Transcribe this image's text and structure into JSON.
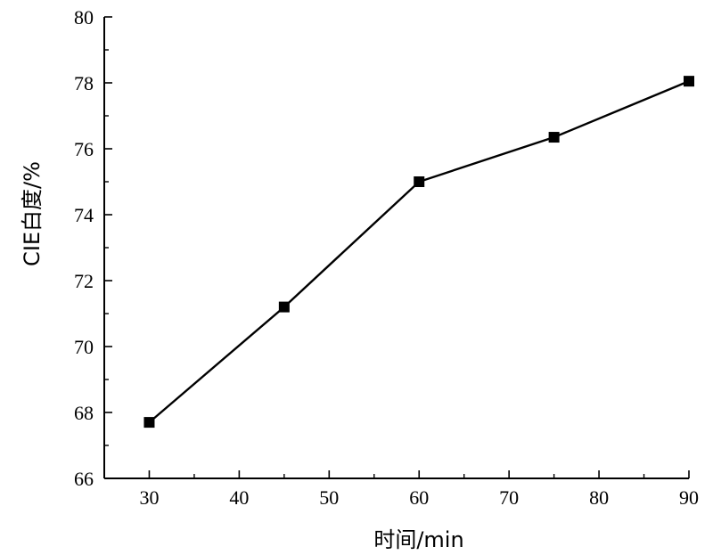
{
  "chart_data": {
    "type": "line",
    "title": "",
    "xlabel": "时间/min",
    "ylabel": "CIE白度/%",
    "x": [
      30,
      45,
      60,
      75,
      90
    ],
    "series": [
      {
        "values": [
          67.7,
          71.2,
          75.0,
          76.35,
          78.05
        ]
      }
    ],
    "xlim": [
      25,
      90
    ],
    "ylim": [
      66,
      80
    ],
    "xticks": [
      30,
      40,
      50,
      60,
      70,
      80,
      90
    ],
    "yticks": [
      66,
      68,
      70,
      72,
      74,
      76,
      78,
      80
    ],
    "marker": "square",
    "line_color": "#000000",
    "grid": false,
    "legend": "none"
  }
}
